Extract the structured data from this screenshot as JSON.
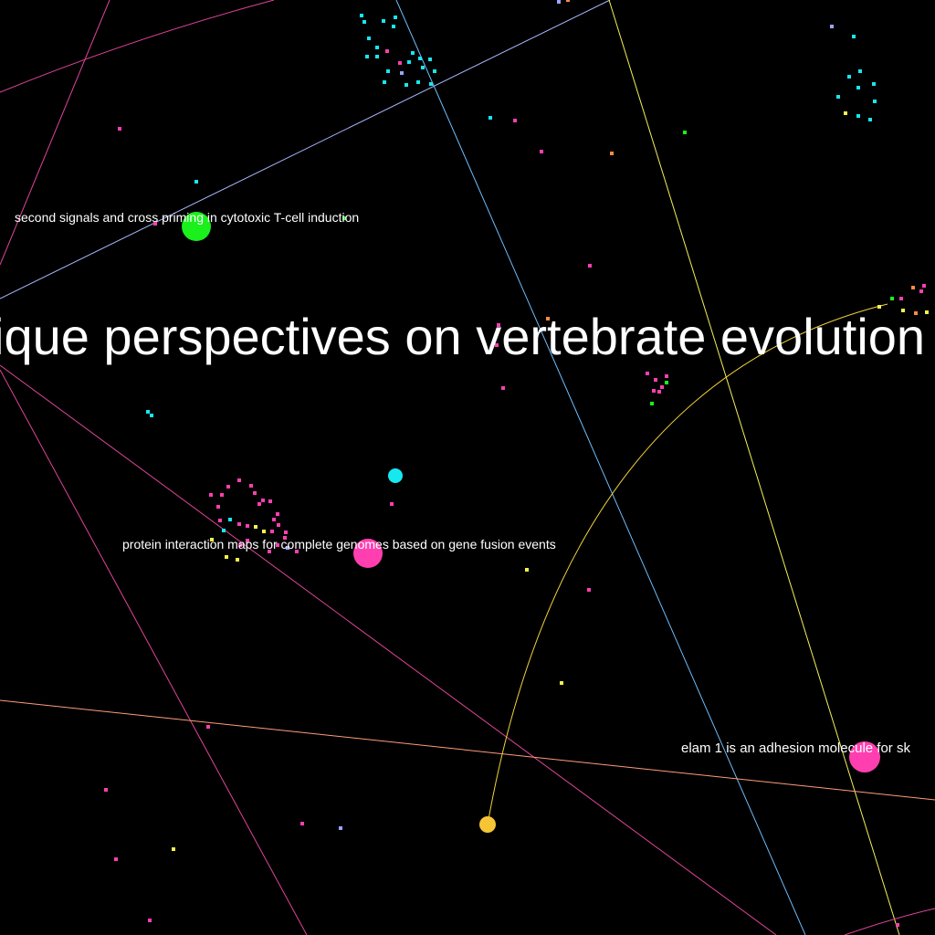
{
  "labels": {
    "large_topic": "ique perspectives on vertebrate evolution",
    "second_signals": "second signals and cross priming in cytotoxic T-cell induction",
    "protein_interaction": "protein interaction maps for complete genomes based on gene fusion events",
    "elam": "elam 1 is an adhesion molecule for sk"
  },
  "colors": {
    "background": "#000000",
    "pink": "#ff3fb0",
    "cyan": "#16e8f0",
    "green": "#19f01c",
    "yellow": "#f5f34a",
    "gold": "#f6c535",
    "orange": "#ff8c42",
    "lavender": "#9da3ff",
    "blue_link": "#6fc0ff",
    "edge_magenta": "#e0449a",
    "edge_orange": "#ff9d7a",
    "edge_yellow": "#f4f05a",
    "edge_gold": "#f1d23c",
    "edge_periwinkle": "#a9b8ff"
  }
}
